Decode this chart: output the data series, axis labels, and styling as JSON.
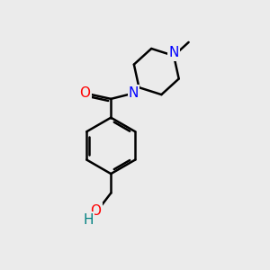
{
  "bg_color": "#ebebeb",
  "bond_color": "#000000",
  "bond_width": 1.8,
  "atom_colors": {
    "N": "#0000ff",
    "O": "#ff0000",
    "H": "#008080",
    "C": "#000000"
  },
  "font_size_atom": 11,
  "scale": 1.0
}
